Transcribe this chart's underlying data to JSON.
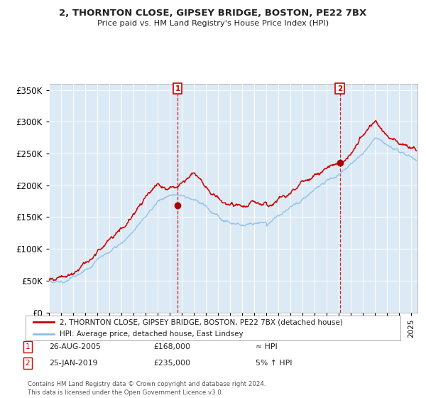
{
  "title": "2, THORNTON CLOSE, GIPSEY BRIDGE, BOSTON, PE22 7BX",
  "subtitle": "Price paid vs. HM Land Registry's House Price Index (HPI)",
  "ylim": [
    0,
    360000
  ],
  "yticks": [
    0,
    50000,
    100000,
    150000,
    200000,
    250000,
    300000,
    350000
  ],
  "ytick_labels": [
    "£0",
    "£50K",
    "£100K",
    "£150K",
    "£200K",
    "£250K",
    "£300K",
    "£350K"
  ],
  "xlim_start": 1995.0,
  "xlim_end": 2025.5,
  "xticks": [
    1995,
    1996,
    1997,
    1998,
    1999,
    2000,
    2001,
    2002,
    2003,
    2004,
    2005,
    2006,
    2007,
    2008,
    2009,
    2010,
    2011,
    2012,
    2013,
    2014,
    2015,
    2016,
    2017,
    2018,
    2019,
    2020,
    2021,
    2022,
    2023,
    2024,
    2025
  ],
  "background_color": "#ffffff",
  "plot_bg_color": "#dceaf5",
  "grid_color": "#ffffff",
  "hpi_color": "#8bbfe8",
  "price_color": "#cc0000",
  "sale1_x": 2005.65,
  "sale1_y": 168000,
  "sale2_x": 2019.07,
  "sale2_y": 235000,
  "legend_label1": "2, THORNTON CLOSE, GIPSEY BRIDGE, BOSTON, PE22 7BX (detached house)",
  "legend_label2": "HPI: Average price, detached house, East Lindsey",
  "note1_date": "26-AUG-2005",
  "note1_price": "£168,000",
  "note1_hpi": "≈ HPI",
  "note2_date": "25-JAN-2019",
  "note2_price": "£235,000",
  "note2_hpi": "5% ↑ HPI",
  "footer": "Contains HM Land Registry data © Crown copyright and database right 2024.\nThis data is licensed under the Open Government Licence v3.0."
}
